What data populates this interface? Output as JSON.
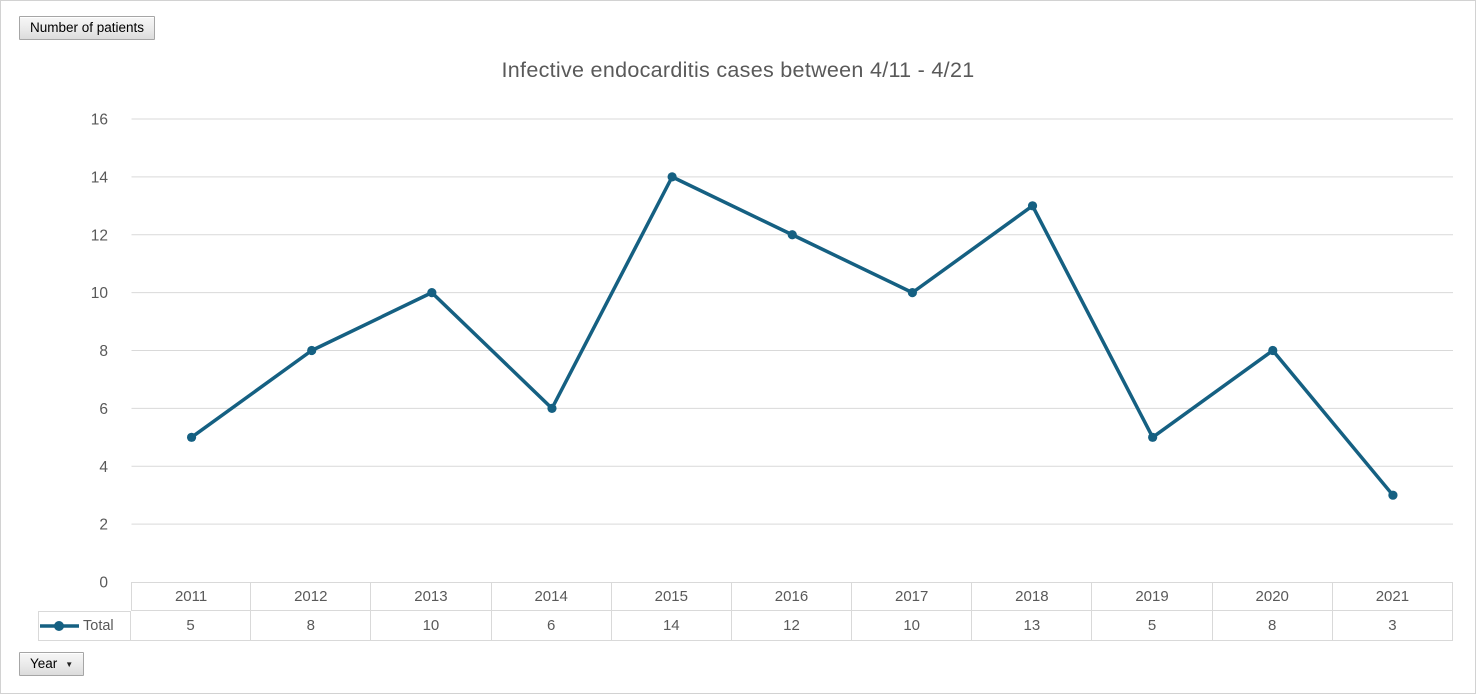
{
  "field_buttons": {
    "value_field": "Number of patients",
    "axis_field": "Year"
  },
  "chart_data": {
    "type": "line",
    "title": "Infective endocarditis cases between 4/11 - 4/21",
    "categories": [
      "2011",
      "2012",
      "2013",
      "2014",
      "2015",
      "2016",
      "2017",
      "2018",
      "2019",
      "2020",
      "2021"
    ],
    "series": [
      {
        "name": "Total",
        "values": [
          5,
          8,
          10,
          6,
          14,
          12,
          10,
          13,
          5,
          8,
          3
        ]
      }
    ],
    "ylim": [
      0,
      16
    ],
    "ytick_step": 2,
    "grid": true,
    "legend_position": "data-table-left",
    "markers": true
  },
  "colors": {
    "series": "#156082",
    "gridline": "#d9d9d9",
    "axis_text": "#595959",
    "title_text": "#595959",
    "table_border": "#d9d9d9",
    "button_border": "#a6a6a6"
  }
}
